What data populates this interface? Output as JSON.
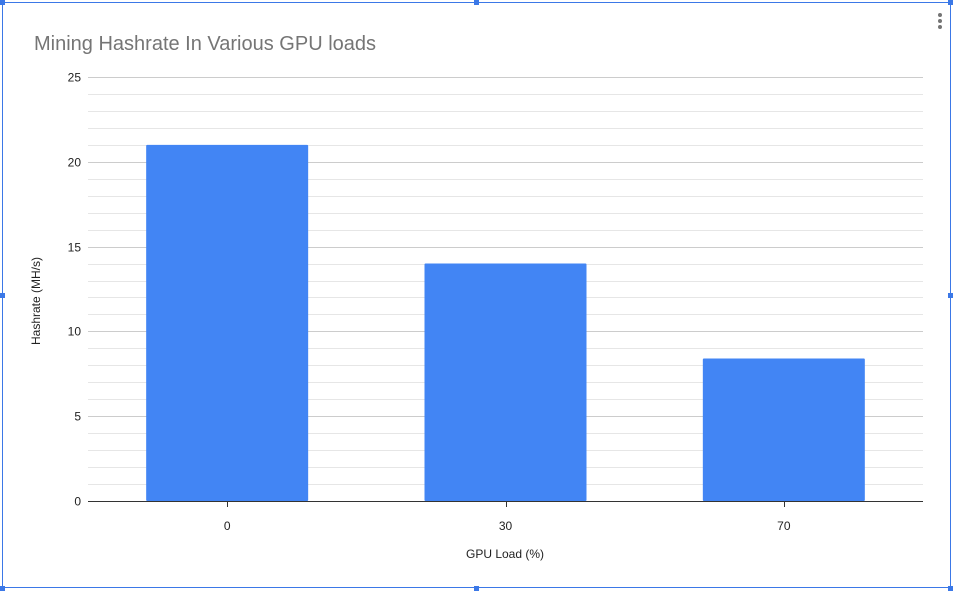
{
  "chart_data": {
    "type": "bar",
    "title": "Mining Hashrate In Various GPU loads",
    "xlabel": "GPU Load (%)",
    "ylabel": "Hashrate (MH/s)",
    "categories": [
      "0",
      "30",
      "70"
    ],
    "values": [
      21,
      14,
      8.4
    ],
    "ylim": [
      0,
      25
    ],
    "yticks": [
      "0",
      "5",
      "10",
      "15",
      "20",
      "25"
    ],
    "grid": true,
    "bar_color": "#4285f4"
  },
  "icons": {
    "menu": "more-vert-icon"
  }
}
